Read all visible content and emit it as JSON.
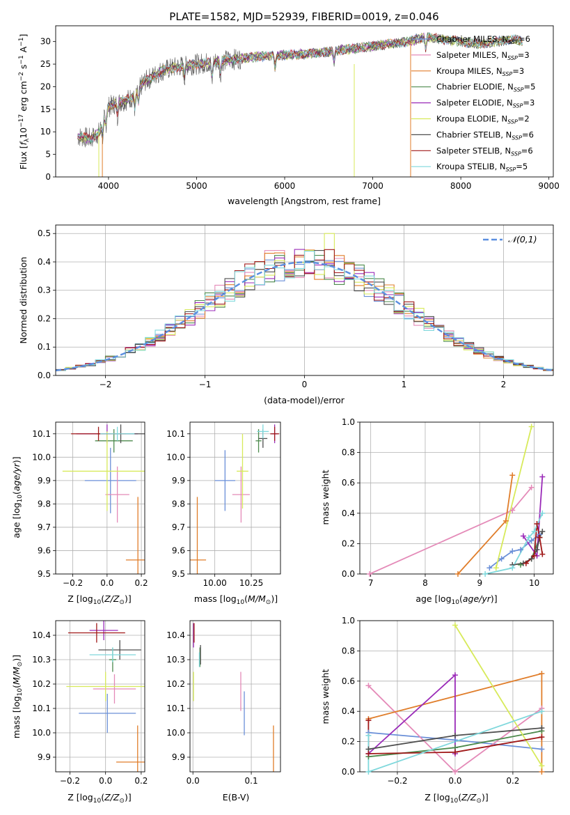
{
  "colors": {
    "Chabrier MILES": "#6a8fd8",
    "Salpeter MILES": "#e48ab8",
    "Kroupa MILES": "#e07d2a",
    "Chabrier ELODIE": "#4c8a4c",
    "Salpeter ELODIE": "#9a2ab8",
    "Kroupa ELODIE": "#d7ea5a",
    "Chabrier STELIB": "#4f4f4f",
    "Salpeter STELIB": "#a01818",
    "Kroupa STELIB": "#7fd8dc",
    "normal": "#5b8fe0"
  },
  "chart_data": [
    {
      "id": "spectrum",
      "type": "line",
      "title": "PLATE=1582, MJD=52939, FIBERID=0019, z=0.046",
      "xlabel": "wavelength [Angstrom, rest frame]",
      "ylabel": "Flux [f_λ10^-17 erg cm^-2 s^-1 A^-1]",
      "xlim": [
        3400,
        9050
      ],
      "ylim": [
        0,
        33.5
      ],
      "xticks": [
        4000,
        5000,
        6000,
        7000,
        8000,
        9000
      ],
      "yticks": [
        0,
        5,
        10,
        15,
        20,
        25,
        30
      ],
      "legend": [
        {
          "label": "Chabrier MILES, N",
          "sub": "SSP",
          "rest": "=6"
        },
        {
          "label": "Salpeter MILES, N",
          "sub": "SSP",
          "rest": "=3"
        },
        {
          "label": "Kroupa MILES, N",
          "sub": "SSP",
          "rest": "=3"
        },
        {
          "label": "Chabrier ELODIE, N",
          "sub": "SSP",
          "rest": "=5"
        },
        {
          "label": "Salpeter ELODIE, N",
          "sub": "SSP",
          "rest": "=3"
        },
        {
          "label": "Kroupa ELODIE, N",
          "sub": "SSP",
          "rest": "=2"
        },
        {
          "label": "Chabrier STELIB, N",
          "sub": "SSP",
          "rest": "=6"
        },
        {
          "label": "Salpeter STELIB, N",
          "sub": "SSP",
          "rest": "=6"
        },
        {
          "label": "Kroupa STELIB, N",
          "sub": "SSP",
          "rest": "=5"
        }
      ],
      "continuum": [
        [
          3650,
          9
        ],
        [
          3800,
          8.5
        ],
        [
          3900,
          10
        ],
        [
          3950,
          13
        ],
        [
          4000,
          15.5
        ],
        [
          4100,
          16.5
        ],
        [
          4200,
          17
        ],
        [
          4300,
          18
        ],
        [
          4400,
          21
        ],
        [
          4600,
          23.5
        ],
        [
          4800,
          24.5
        ],
        [
          5000,
          25
        ],
        [
          5200,
          25.5
        ],
        [
          5400,
          26
        ],
        [
          5600,
          26.5
        ],
        [
          5800,
          26.8
        ],
        [
          6000,
          27
        ],
        [
          6200,
          27.2
        ],
        [
          6400,
          27.5
        ],
        [
          6600,
          28
        ],
        [
          6800,
          28.5
        ],
        [
          7000,
          29
        ],
        [
          7200,
          29.5
        ],
        [
          7400,
          30
        ],
        [
          7600,
          31
        ],
        [
          7800,
          30.5
        ],
        [
          8000,
          30
        ],
        [
          8200,
          29.5
        ],
        [
          8400,
          30
        ],
        [
          8600,
          30.5
        ],
        [
          8700,
          30
        ]
      ]
    },
    {
      "id": "residuals",
      "type": "histogram",
      "xlabel": "(data-model)/error",
      "ylabel": "Normed distribution",
      "xlim": [
        -2.5,
        2.5
      ],
      "ylim": [
        0,
        0.53
      ],
      "xticks": [
        -2,
        -1,
        0,
        1,
        2
      ],
      "yticks": [
        0.0,
        0.1,
        0.2,
        0.3,
        0.4,
        0.5
      ],
      "legend": "𝒩(0,1)",
      "bin_width": 0.1,
      "grid": true
    },
    {
      "id": "age-vs-Z",
      "type": "errorbar",
      "xlabel": "Z [log10(Z/Z⊙)]",
      "ylabel": "age [log10(age/yr)]",
      "xlim": [
        -0.3,
        0.22
      ],
      "ylim": [
        9.5,
        10.15
      ],
      "xticks": [
        -0.2,
        0.0,
        0.2
      ],
      "yticks": [
        9.5,
        9.6,
        9.7,
        9.8,
        9.9,
        10.0,
        10.1
      ],
      "points": [
        {
          "model": "Chabrier MILES",
          "x": 0.02,
          "y": 9.9,
          "xerr": 0.15,
          "yerr": 0.14
        },
        {
          "model": "Salpeter MILES",
          "x": 0.06,
          "y": 9.84,
          "xerr": 0.07,
          "yerr": 0.12
        },
        {
          "model": "Kroupa MILES",
          "x": 0.18,
          "y": 9.56,
          "xerr": 0.07,
          "yerr": 0.27
        },
        {
          "model": "Chabrier ELODIE",
          "x": 0.04,
          "y": 10.07,
          "xerr": 0.11,
          "yerr": 0.05
        },
        {
          "model": "Salpeter ELODIE",
          "x": 0.0,
          "y": 10.1,
          "xerr": 0.18,
          "yerr": 0.04
        },
        {
          "model": "Kroupa ELODIE",
          "x": 0.0,
          "y": 9.94,
          "xerr": 0.26,
          "yerr": 0.17
        },
        {
          "model": "Chabrier STELIB",
          "x": 0.08,
          "y": 10.1,
          "xerr": 0.14,
          "yerr": 0.04
        },
        {
          "model": "Salpeter STELIB",
          "x": -0.05,
          "y": 10.1,
          "xerr": 0.16,
          "yerr": 0.03
        },
        {
          "model": "Kroupa STELIB",
          "x": 0.06,
          "y": 10.1,
          "xerr": 0.1,
          "yerr": 0.03
        }
      ]
    },
    {
      "id": "age-vs-mass",
      "type": "errorbar",
      "xlabel": "mass [log10(M/M⊙)]",
      "xlim": [
        9.83,
        10.45
      ],
      "ylim": [
        9.5,
        10.15
      ],
      "xticks": [
        10.0,
        10.25
      ],
      "yticks": [
        9.5,
        9.6,
        9.7,
        9.8,
        9.9,
        10.0,
        10.1
      ],
      "points": [
        {
          "model": "Chabrier MILES",
          "x": 10.07,
          "y": 9.9,
          "xerr": 0.07,
          "yerr": 0.13
        },
        {
          "model": "Salpeter MILES",
          "x": 10.18,
          "y": 9.84,
          "xerr": 0.06,
          "yerr": 0.12
        },
        {
          "model": "Kroupa MILES",
          "x": 9.88,
          "y": 9.56,
          "xerr": 0.06,
          "yerr": 0.27
        },
        {
          "model": "Chabrier ELODIE",
          "x": 10.3,
          "y": 10.07,
          "xerr": 0.02,
          "yerr": 0.05
        },
        {
          "model": "Salpeter ELODIE",
          "x": 10.41,
          "y": 10.1,
          "xerr": 0.02,
          "yerr": 0.04
        },
        {
          "model": "Kroupa ELODIE",
          "x": 10.19,
          "y": 9.94,
          "xerr": 0.04,
          "yerr": 0.16
        },
        {
          "model": "Chabrier STELIB",
          "x": 10.33,
          "y": 10.08,
          "xerr": 0.03,
          "yerr": 0.04
        },
        {
          "model": "Salpeter STELIB",
          "x": 10.41,
          "y": 10.1,
          "xerr": 0.03,
          "yerr": 0.03
        },
        {
          "model": "Kroupa STELIB",
          "x": 10.33,
          "y": 10.11,
          "xerr": 0.04,
          "yerr": 0.03
        }
      ]
    },
    {
      "id": "weight-vs-age",
      "type": "line",
      "xlabel": "age [log10(age/yr)]",
      "ylabel": "mass weight",
      "xlim": [
        6.8,
        10.35
      ],
      "ylim": [
        0,
        1.0
      ],
      "xticks": [
        7,
        8,
        9,
        10
      ],
      "yticks": [
        0.0,
        0.2,
        0.4,
        0.6,
        0.8,
        1.0
      ],
      "series": [
        {
          "model": "Chabrier MILES",
          "points": [
            [
              9.18,
              0.04
            ],
            [
              9.4,
              0.1
            ],
            [
              9.6,
              0.15
            ],
            [
              9.75,
              0.16
            ],
            [
              9.95,
              0.22
            ],
            [
              10.1,
              0.26
            ]
          ]
        },
        {
          "model": "Salpeter MILES",
          "points": [
            [
              6.98,
              0.0
            ],
            [
              9.6,
              0.42
            ],
            [
              9.95,
              0.57
            ]
          ]
        },
        {
          "model": "Kroupa MILES",
          "points": [
            [
              8.6,
              0.0
            ],
            [
              9.48,
              0.35
            ],
            [
              9.6,
              0.65
            ]
          ]
        },
        {
          "model": "Chabrier ELODIE",
          "points": [
            [
              9.75,
              0.06
            ],
            [
              9.95,
              0.1
            ],
            [
              10.1,
              0.24
            ]
          ]
        },
        {
          "model": "Salpeter ELODIE",
          "points": [
            [
              9.8,
              0.25
            ],
            [
              10.05,
              0.12
            ],
            [
              10.15,
              0.64
            ]
          ]
        },
        {
          "model": "Kroupa ELODIE",
          "points": [
            [
              9.3,
              0.04
            ],
            [
              9.95,
              0.97
            ]
          ]
        },
        {
          "model": "Chabrier STELIB",
          "points": [
            [
              9.6,
              0.06
            ],
            [
              9.8,
              0.07
            ],
            [
              9.95,
              0.1
            ],
            [
              10.05,
              0.16
            ],
            [
              10.1,
              0.24
            ],
            [
              10.15,
              0.28
            ]
          ]
        },
        {
          "model": "Salpeter STELIB",
          "points": [
            [
              9.85,
              0.07
            ],
            [
              10.0,
              0.12
            ],
            [
              10.05,
              0.33
            ],
            [
              10.1,
              0.24
            ],
            [
              10.15,
              0.13
            ]
          ]
        },
        {
          "model": "Kroupa STELIB",
          "points": [
            [
              9.1,
              0.0
            ],
            [
              9.6,
              0.04
            ],
            [
              9.9,
              0.24
            ],
            [
              10.0,
              0.28
            ],
            [
              10.15,
              0.4
            ]
          ]
        }
      ]
    },
    {
      "id": "mass-vs-Z",
      "type": "errorbar",
      "xlabel": "Z [log10(Z/Z⊙)]",
      "ylabel": "mass [log10(M/M⊙)]",
      "xlim": [
        -0.28,
        0.22
      ],
      "ylim": [
        9.84,
        10.46
      ],
      "xticks": [
        -0.2,
        0.0,
        0.2
      ],
      "yticks": [
        9.9,
        10.0,
        10.1,
        10.2,
        10.3,
        10.4
      ],
      "points": [
        {
          "model": "Chabrier MILES",
          "x": 0.01,
          "y": 10.08,
          "xerr": 0.16,
          "yerr": 0.08
        },
        {
          "model": "Salpeter MILES",
          "x": 0.05,
          "y": 10.18,
          "xerr": 0.12,
          "yerr": 0.06
        },
        {
          "model": "Kroupa MILES",
          "x": 0.18,
          "y": 9.88,
          "xerr": 0.12,
          "yerr": 0.15
        },
        {
          "model": "Chabrier ELODIE",
          "x": 0.04,
          "y": 10.3,
          "xerr": 0.02,
          "yerr": 0.05
        },
        {
          "model": "Salpeter ELODIE",
          "x": -0.01,
          "y": 10.42,
          "xerr": 0.08,
          "yerr": 0.04
        },
        {
          "model": "Kroupa ELODIE",
          "x": 0.0,
          "y": 10.19,
          "xerr": 0.22,
          "yerr": 0.06
        },
        {
          "model": "Chabrier STELIB",
          "x": 0.08,
          "y": 10.34,
          "xerr": 0.12,
          "yerr": 0.04
        },
        {
          "model": "Salpeter STELIB",
          "x": -0.05,
          "y": 10.41,
          "xerr": 0.16,
          "yerr": 0.04
        },
        {
          "model": "Kroupa STELIB",
          "x": 0.04,
          "y": 10.32,
          "xerr": 0.13,
          "yerr": 0.03
        }
      ]
    },
    {
      "id": "mass-vs-EBV",
      "type": "errorbar",
      "xlabel": "E(B-V)",
      "xlim": [
        -0.005,
        0.15
      ],
      "ylim": [
        9.84,
        10.46
      ],
      "xticks": [
        0.0,
        0.1
      ],
      "yticks": [
        9.9,
        10.0,
        10.1,
        10.2,
        10.3,
        10.4
      ],
      "points": [
        {
          "model": "Chabrier MILES",
          "x": 0.088,
          "y": 10.08,
          "xerr": 0,
          "yerr": 0.09
        },
        {
          "model": "Salpeter MILES",
          "x": 0.082,
          "y": 10.17,
          "xerr": 0,
          "yerr": 0.08
        },
        {
          "model": "Kroupa MILES",
          "x": 0.138,
          "y": 9.88,
          "xerr": 0,
          "yerr": 0.15
        },
        {
          "model": "Chabrier ELODIE",
          "x": 0.012,
          "y": 10.31,
          "xerr": 0,
          "yerr": 0.04
        },
        {
          "model": "Salpeter ELODIE",
          "x": 0.001,
          "y": 10.4,
          "xerr": 0,
          "yerr": 0.05
        },
        {
          "model": "Kroupa ELODIE",
          "x": 0.001,
          "y": 10.19,
          "xerr": 0,
          "yerr": 0.06
        },
        {
          "model": "Chabrier STELIB",
          "x": 0.013,
          "y": 10.32,
          "xerr": 0,
          "yerr": 0.04
        },
        {
          "model": "Salpeter STELIB",
          "x": 0.002,
          "y": 10.41,
          "xerr": 0,
          "yerr": 0.04
        },
        {
          "model": "Kroupa STELIB",
          "x": 0.011,
          "y": 10.3,
          "xerr": 0,
          "yerr": 0.03
        }
      ]
    },
    {
      "id": "weight-vs-Z",
      "type": "line",
      "xlabel": "Z [log10(Z/Z⊙)]",
      "ylabel": "mass weight",
      "xlim": [
        -0.33,
        0.34
      ],
      "ylim": [
        0,
        1.0
      ],
      "xticks": [
        -0.2,
        0.0,
        0.2
      ],
      "yticks": [
        0.0,
        0.2,
        0.4,
        0.6,
        0.8,
        1.0
      ],
      "series": [
        {
          "model": "Chabrier MILES",
          "points": [
            [
              -0.3,
              0.26
            ],
            [
              0.0,
              0.21
            ],
            [
              0.3,
              0.15
            ]
          ]
        },
        {
          "model": "Salpeter MILES",
          "points": [
            [
              -0.3,
              0.57
            ],
            [
              0.0,
              0.0
            ],
            [
              0.3,
              0.42
            ]
          ]
        },
        {
          "model": "Kroupa MILES",
          "points": [
            [
              -0.3,
              0.35
            ],
            [
              0.3,
              0.65
            ],
            [
              0.3,
              0.0
            ]
          ]
        },
        {
          "model": "Chabrier ELODIE",
          "points": [
            [
              -0.3,
              0.1
            ],
            [
              0.0,
              0.16
            ],
            [
              0.3,
              0.27
            ]
          ]
        },
        {
          "model": "Salpeter ELODIE",
          "points": [
            [
              -0.3,
              0.12
            ],
            [
              0.0,
              0.64
            ],
            [
              0.0,
              0.12
            ]
          ]
        },
        {
          "model": "Kroupa ELODIE",
          "points": [
            [
              0.0,
              0.97
            ],
            [
              0.3,
              0.04
            ]
          ]
        },
        {
          "model": "Chabrier STELIB",
          "points": [
            [
              -0.3,
              0.15
            ],
            [
              0.0,
              0.24
            ],
            [
              0.3,
              0.29
            ]
          ]
        },
        {
          "model": "Salpeter STELIB",
          "points": [
            [
              -0.3,
              0.34
            ],
            [
              -0.3,
              0.12
            ],
            [
              0.0,
              0.13
            ],
            [
              0.3,
              0.23
            ]
          ]
        },
        {
          "model": "Kroupa STELIB",
          "points": [
            [
              -0.3,
              0.24
            ],
            [
              -0.3,
              0.0
            ],
            [
              0.3,
              0.4
            ]
          ]
        }
      ]
    }
  ]
}
